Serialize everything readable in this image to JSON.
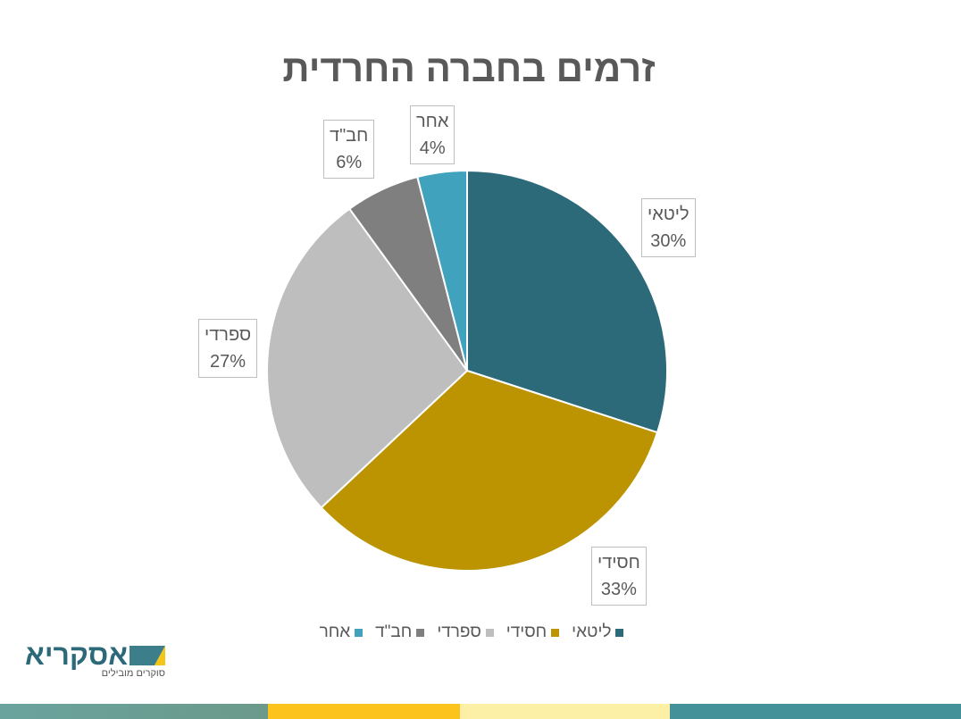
{
  "chart_data": {
    "type": "pie",
    "title": "זרמים בחברה החרדית",
    "categories": [
      "ליטאי",
      "חסידי",
      "ספרדי",
      "חב\"ד",
      "אחר"
    ],
    "values": [
      30,
      33,
      27,
      6,
      4
    ],
    "labels": [
      "30%",
      "33%",
      "27%",
      "6%",
      "4%"
    ],
    "colors": [
      "#2C6979",
      "#BC9300",
      "#BEBEBE",
      "#7F7F7F",
      "#41A2BD"
    ],
    "legend_position": "bottom"
  },
  "logo": {
    "name": "אסקריא",
    "tagline": "סוקרים מובילים"
  }
}
